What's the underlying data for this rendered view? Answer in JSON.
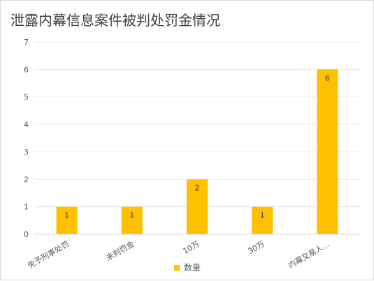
{
  "chart_data": {
    "type": "bar",
    "title": "泄露内幕信息案件被判处罚金情况",
    "categories": [
      "免予刑事处罚",
      "未判罚金",
      "10万",
      "30万",
      "内幕交易人…"
    ],
    "series": [
      {
        "name": "数量",
        "values": [
          1,
          1,
          2,
          1,
          6
        ],
        "color": "#FFC000"
      }
    ],
    "yticks": [
      0,
      1,
      2,
      3,
      4,
      5,
      6,
      7
    ],
    "ylim": [
      0,
      7
    ],
    "grid": true,
    "legend": "bottom",
    "data_labels": true
  }
}
